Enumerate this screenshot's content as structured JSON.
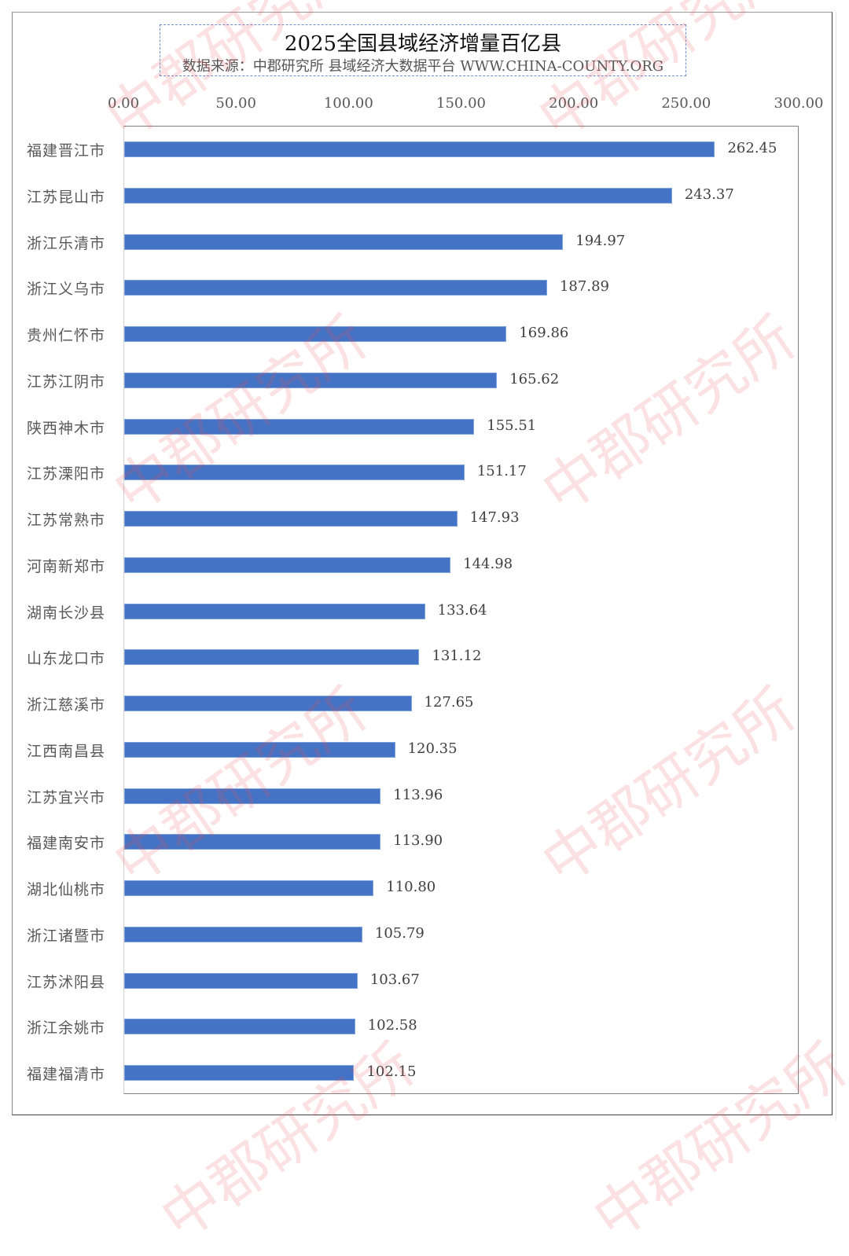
{
  "chart_data": {
    "type": "bar",
    "orientation": "horizontal",
    "title": "2025全国县域经济增量百亿县",
    "subtitle": "数据来源：中郡研究所 县域经济大数据平台 WWW.CHINA-COUNTY.ORG",
    "xlabel": "",
    "ylabel": "",
    "xlim": [
      0,
      300
    ],
    "x_ticks": [
      "0.00",
      "50.00",
      "100.00",
      "150.00",
      "200.00",
      "250.00",
      "300.00"
    ],
    "axis_position": "top",
    "grid": false,
    "legend": null,
    "bar_color": "#4472c4",
    "categories": [
      "福建晋江市",
      "江苏昆山市",
      "浙江乐清市",
      "浙江义乌市",
      "贵州仁怀市",
      "江苏江阴市",
      "陕西神木市",
      "江苏溧阳市",
      "江苏常熟市",
      "河南新郑市",
      "湖南长沙县",
      "山东龙口市",
      "浙江慈溪市",
      "江西南昌县",
      "江苏宜兴市",
      "福建南安市",
      "湖北仙桃市",
      "浙江诸暨市",
      "江苏沭阳县",
      "浙江余姚市",
      "福建福清市"
    ],
    "values": [
      262.45,
      243.37,
      194.97,
      187.89,
      169.86,
      165.62,
      155.51,
      151.17,
      147.93,
      144.98,
      133.64,
      131.12,
      127.65,
      120.35,
      113.96,
      113.9,
      110.8,
      105.79,
      103.67,
      102.58,
      102.15
    ],
    "value_labels": [
      "262.45",
      "243.37",
      "194.97",
      "187.89",
      "169.86",
      "165.62",
      "155.51",
      "151.17",
      "147.93",
      "144.98",
      "133.64",
      "131.12",
      "127.65",
      "120.35",
      "113.96",
      "113.90",
      "110.80",
      "105.79",
      "103.67",
      "102.58",
      "102.15"
    ]
  },
  "header": {
    "title": "2025全国县域经济增量百亿县",
    "subtitle": "数据来源：中郡研究所 县域经济大数据平台 WWW.CHINA-COUNTY.ORG"
  },
  "axis": {
    "ticks": [
      "0.00",
      "50.00",
      "100.00",
      "150.00",
      "200.00",
      "250.00",
      "300.00"
    ]
  },
  "watermark": {
    "text": "中郡研究所",
    "color": "#eb5a5a"
  }
}
